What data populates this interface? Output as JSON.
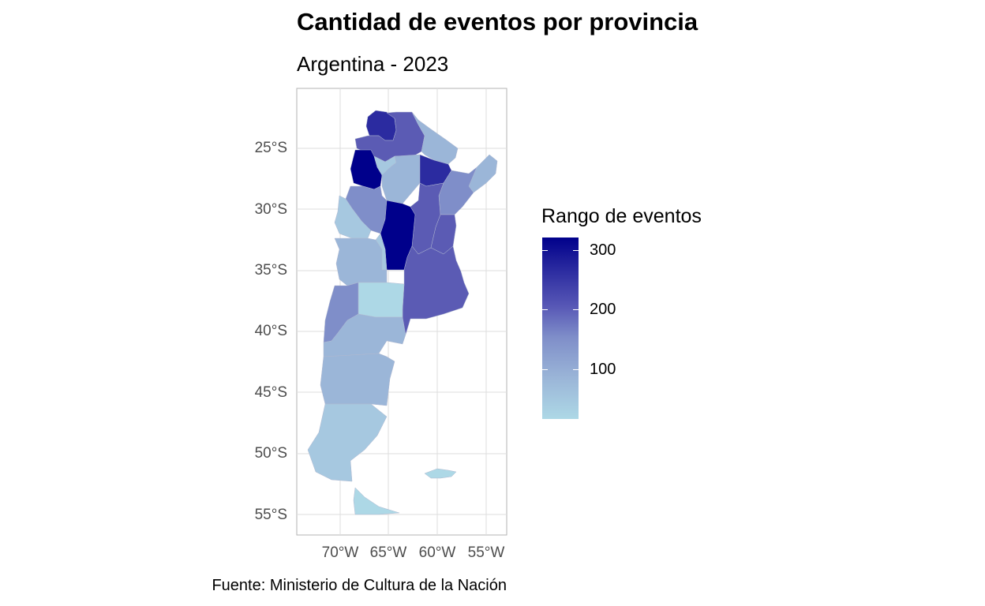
{
  "title": "Cantidad de eventos por provincia",
  "subtitle": "Argentina - 2023",
  "caption": "Fuente: Ministerio de Cultura de la Nación",
  "axes": {
    "y_ticks": [
      "25°S",
      "30°S",
      "35°S",
      "40°S",
      "45°S",
      "50°S",
      "55°S"
    ],
    "x_ticks": [
      "70°W",
      "65°W",
      "60°W",
      "55°W"
    ]
  },
  "legend": {
    "title": "Rango de eventos",
    "labels": [
      "300",
      "200",
      "100"
    ],
    "colors": {
      "high": "#00008b",
      "mid": "#5858b6",
      "low": "#add8e6"
    }
  },
  "colors": {
    "panel_border": "#b3b3b3",
    "grid": "#dedede",
    "dark": "#00008b",
    "darkblue": "#2b2ba0",
    "violet": "#3f3fa8",
    "medium": "#5b5bb4",
    "mediumlight": "#7f8ec9",
    "light": "#9bb6d8",
    "lighter": "#a6c8e0",
    "lightest": "#add8e6"
  }
}
